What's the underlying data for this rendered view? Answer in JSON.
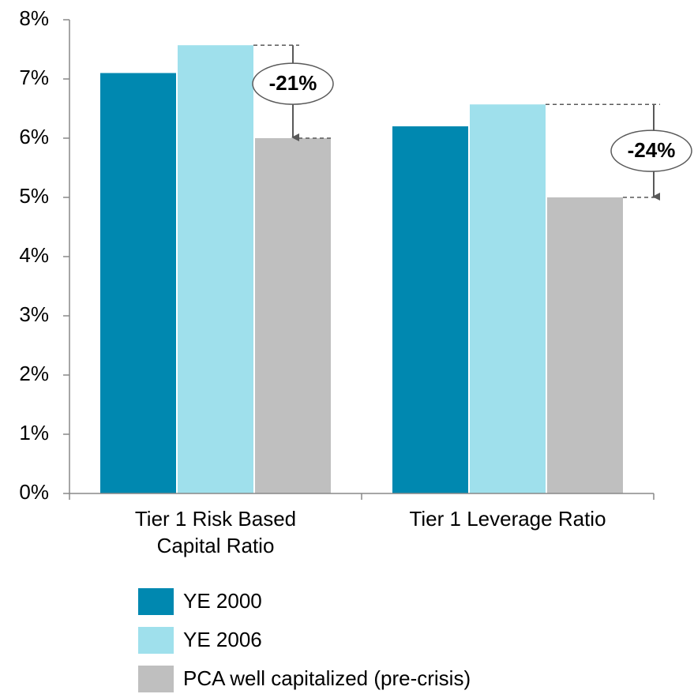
{
  "chart_data": {
    "type": "bar",
    "categories": [
      "Tier 1 Risk Based\nCapital Ratio",
      "Tier 1 Leverage Ratio"
    ],
    "series": [
      {
        "name": "YE 2000",
        "color": "#0088b0",
        "values": [
          7.1,
          6.2
        ]
      },
      {
        "name": "YE 2006",
        "color": "#9fe0ec",
        "values": [
          7.57,
          6.57
        ]
      },
      {
        "name": "PCA well capitalized (pre-crisis)",
        "color": "#bfbfbf",
        "values": [
          6,
          5
        ]
      }
    ],
    "ylim": [
      0,
      8
    ],
    "yticks": [
      {
        "value": 0,
        "label": "0%"
      },
      {
        "value": 1,
        "label": "1%"
      },
      {
        "value": 2,
        "label": "2%"
      },
      {
        "value": 3,
        "label": "3%"
      },
      {
        "value": 4,
        "label": "4%"
      },
      {
        "value": 5,
        "label": "5%"
      },
      {
        "value": 6,
        "label": "6%"
      },
      {
        "value": 7,
        "label": "7%"
      },
      {
        "value": 8,
        "label": "8%"
      }
    ],
    "annotations": [
      {
        "text": "-21%"
      },
      {
        "text": "-24%"
      }
    ],
    "legend": "bottom"
  }
}
